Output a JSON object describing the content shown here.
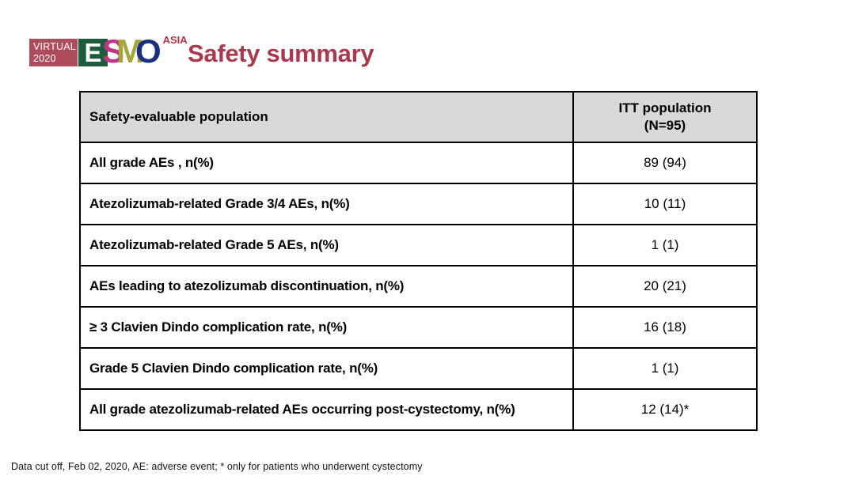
{
  "logo": {
    "virtual_label": "VIRTUAL",
    "year": "2020",
    "letters": {
      "e": "E",
      "s": "S",
      "m": "M",
      "o": "O"
    },
    "asia": "ASIA",
    "colors": {
      "virtual_box": "#AE4C5C",
      "e_block": "#1E5B3B",
      "s": "#BE3487",
      "m": "#A4A63B",
      "o": "#1A2F7D",
      "asia": "#B03744"
    }
  },
  "title": "Safety summary",
  "title_color": "#A8394F",
  "table": {
    "header": {
      "population_col": "Safety-evaluable population",
      "itt_line1": "ITT population",
      "itt_line2": "(N=95)",
      "header_bg": "#D9D9D9"
    },
    "rows": [
      {
        "label": "All grade AEs , n(%)",
        "value": "89 (94)"
      },
      {
        "label": "Atezolizumab-related Grade 3/4 AEs, n(%)",
        "value": "10 (11)"
      },
      {
        "label": "Atezolizumab-related Grade 5 AEs, n(%)",
        "value": "1 (1)"
      },
      {
        "label": "AEs leading to atezolizumab discontinuation, n(%)",
        "value": "20 (21)"
      },
      {
        "label": "≥ 3 Clavien Dindo complication rate, n(%)",
        "value": "16 (18)"
      },
      {
        "label": "Grade 5 Clavien Dindo complication rate, n(%)",
        "value": "1 (1)"
      },
      {
        "label": "All grade atezolizumab-related AEs occurring post-cystectomy, n(%)",
        "value": "12 (14)*"
      }
    ]
  },
  "footer": "Data cut off, Feb 02, 2020, AE: adverse event; * only for patients who underwent cystectomy"
}
